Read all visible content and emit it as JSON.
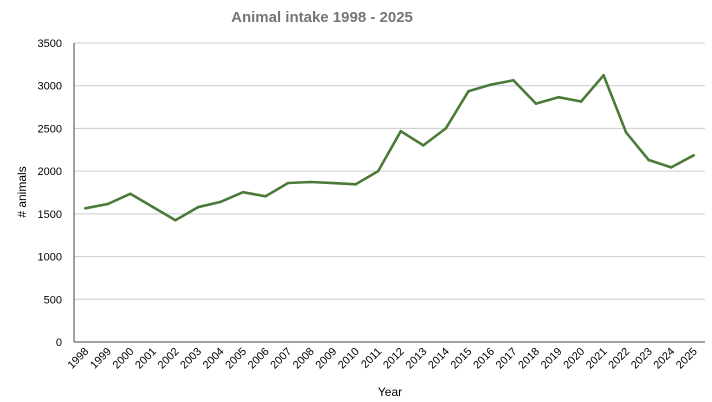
{
  "chart_data": {
    "type": "line",
    "title": "Animal intake 1998 - 2025",
    "xlabel": "Year",
    "ylabel": "# animals",
    "ylim": [
      0,
      3500
    ],
    "yticks": [
      0,
      500,
      1000,
      1500,
      2000,
      2500,
      3000,
      3500
    ],
    "grid": true,
    "legend": "none",
    "categories": [
      "1998",
      "1999",
      "2000",
      "2001",
      "2002",
      "2003",
      "2004",
      "2005",
      "2006",
      "2007",
      "2008",
      "2009",
      "2010",
      "2011",
      "2012",
      "2013",
      "2014",
      "2015",
      "2016",
      "2017",
      "2018",
      "2019",
      "2020",
      "2021",
      "2022",
      "2023",
      "2024",
      "2025"
    ],
    "series": [
      {
        "color": "#4a7a38",
        "values": [
          1565,
          1615,
          1735,
          1580,
          1425,
          1578,
          1640,
          1753,
          1706,
          1861,
          1873,
          1860,
          1846,
          2000,
          2468,
          2301,
          2500,
          2935,
          3013,
          3063,
          2791,
          2865,
          2815,
          3122,
          2453,
          2130,
          2044,
          2185
        ]
      }
    ]
  }
}
